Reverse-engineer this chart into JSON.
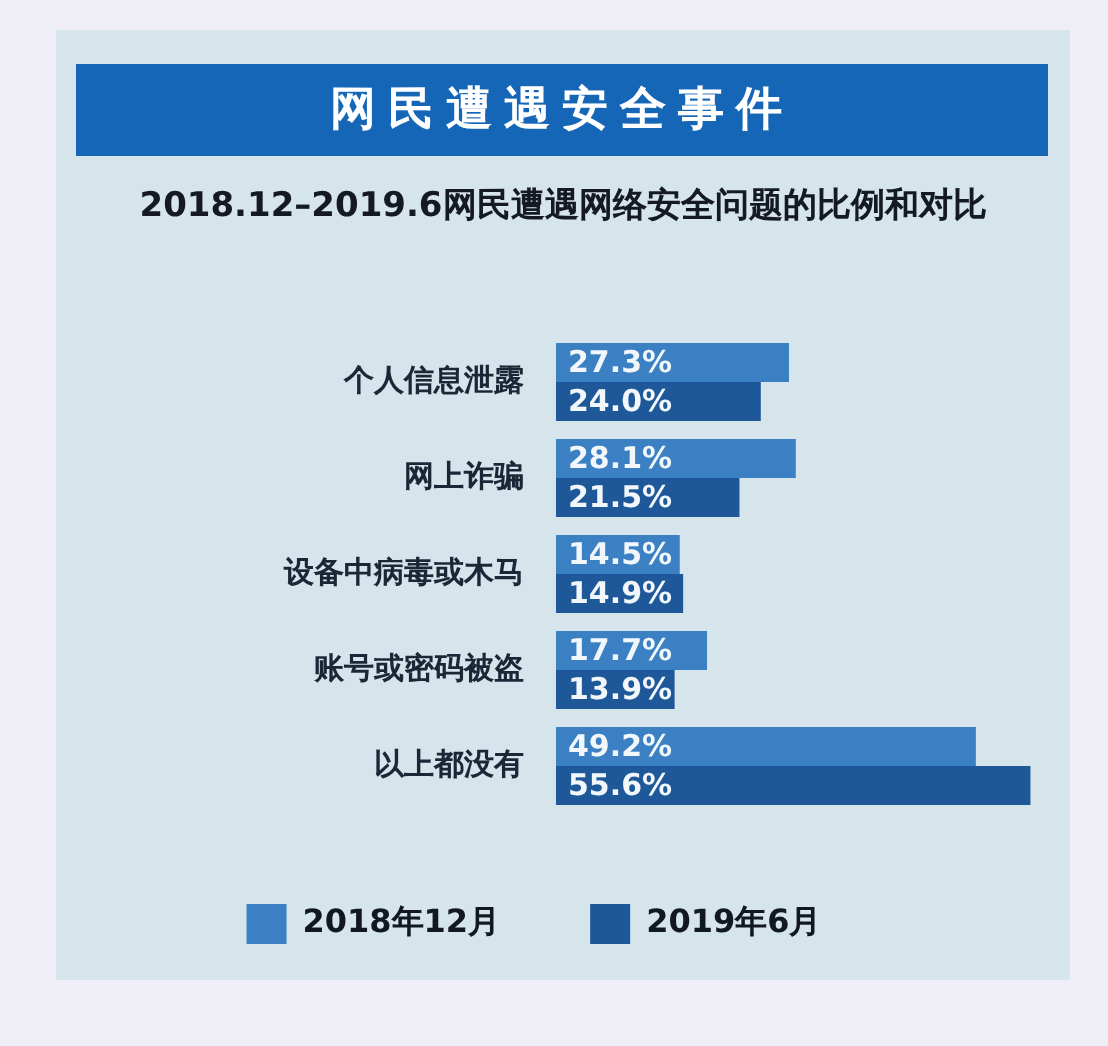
{
  "chart_data": {
    "type": "bar",
    "orientation": "horizontal",
    "title": "网民遭遇安全事件",
    "subtitle": "2018.12–2019.6网民遭遇网络安全问题的比例和对比",
    "categories": [
      "个人信息泄露",
      "网上诈骗",
      "设备中病毒或木马",
      "账号或密码被盗",
      "以上都没有"
    ],
    "series": [
      {
        "name": "2018年12月",
        "color": "#3a80c2",
        "values": [
          27.3,
          28.1,
          14.5,
          17.7,
          49.2
        ],
        "value_labels": [
          "27.3%",
          "28.1%",
          "14.5%",
          "17.7%",
          "49.2%"
        ]
      },
      {
        "name": "2019年6月",
        "color": "#1f5899",
        "values": [
          24.0,
          21.5,
          14.9,
          13.9,
          55.6
        ],
        "value_labels": [
          "24.0%",
          "21.5%",
          "14.9%",
          "13.9%",
          "55.6%"
        ]
      }
    ],
    "legend": "bottom",
    "tick_labels": "y"
  }
}
